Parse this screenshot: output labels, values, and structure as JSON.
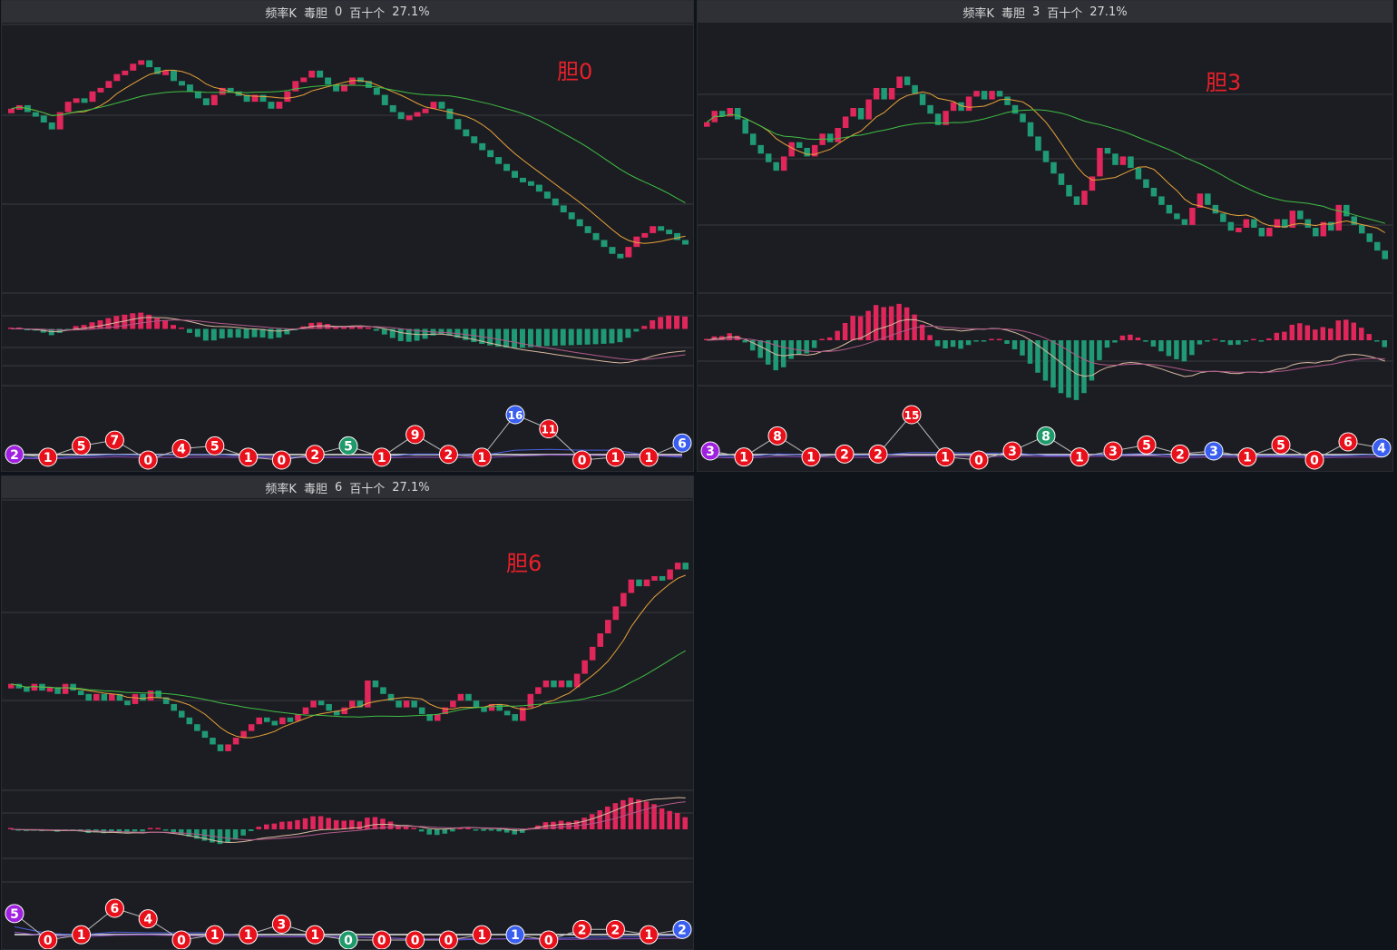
{
  "colors": {
    "panel_bg": "#1c1d22",
    "header_bg": "#2f3036",
    "grid": "#3a3b42",
    "up": "#e0265a",
    "down": "#1f9a74",
    "ma_short": "#e8a23a",
    "ma_long": "#3fbe44",
    "macd_fast": "#d9b8a0",
    "macd_slow": "#b05a8a",
    "ball_red": "#e8101a",
    "ball_blue": "#3a5ef0",
    "ball_green": "#1f9a6a",
    "ball_purple": "#a020e0",
    "annotation": "#e8202a"
  },
  "panels": [
    {
      "header": {
        "name": "频率K",
        "tag": "毒胆",
        "num": "0",
        "pos": "百十个",
        "pct": "27.1%"
      },
      "annotation": "胆0",
      "chart_data": {
        "type": "candlestick",
        "closes": [
          5.4,
          5.5,
          5.3,
          5.2,
          5.0,
          4.8,
          5.3,
          5.6,
          5.7,
          5.6,
          5.9,
          6.0,
          6.2,
          6.4,
          6.5,
          6.7,
          6.8,
          6.6,
          6.4,
          6.5,
          6.2,
          6.1,
          5.9,
          5.7,
          5.5,
          5.8,
          6.0,
          5.9,
          5.8,
          5.6,
          5.8,
          5.6,
          5.4,
          5.6,
          5.9,
          6.2,
          6.3,
          6.5,
          6.3,
          6.1,
          5.9,
          6.1,
          6.3,
          6.2,
          6.0,
          5.8,
          5.5,
          5.3,
          5.1,
          5.2,
          5.3,
          5.4,
          5.6,
          5.4,
          5.1,
          4.8,
          4.6,
          4.4,
          4.2,
          4.0,
          3.8,
          3.6,
          3.4,
          3.3,
          3.2,
          3.0,
          2.8,
          2.6,
          2.4,
          2.2,
          2.0,
          1.8,
          1.6,
          1.4,
          1.2,
          1.1,
          1.4,
          1.7,
          1.8,
          2.0,
          1.9,
          1.8,
          1.6,
          1.5
        ],
        "balls": [
          {
            "v": "2",
            "c": "purple"
          },
          {
            "v": "1",
            "c": "red"
          },
          {
            "v": "5",
            "c": "red"
          },
          {
            "v": "7",
            "c": "red"
          },
          {
            "v": "0",
            "c": "red"
          },
          {
            "v": "4",
            "c": "red"
          },
          {
            "v": "5",
            "c": "red"
          },
          {
            "v": "1",
            "c": "red"
          },
          {
            "v": "0",
            "c": "red"
          },
          {
            "v": "2",
            "c": "red"
          },
          {
            "v": "5",
            "c": "green"
          },
          {
            "v": "1",
            "c": "red"
          },
          {
            "v": "9",
            "c": "red"
          },
          {
            "v": "2",
            "c": "red"
          },
          {
            "v": "1",
            "c": "red"
          },
          {
            "v": "16",
            "c": "blue"
          },
          {
            "v": "11",
            "c": "red"
          },
          {
            "v": "0",
            "c": "red"
          },
          {
            "v": "1",
            "c": "red"
          },
          {
            "v": "1",
            "c": "red"
          },
          {
            "v": "6",
            "c": "blue"
          }
        ]
      }
    },
    {
      "header": {
        "name": "频率K",
        "tag": "毒胆",
        "num": "3",
        "pos": "百十个",
        "pct": "27.1%"
      },
      "annotation": "胆3",
      "chart_data": {
        "type": "candlestick",
        "closes": [
          6.2,
          6.6,
          6.4,
          6.7,
          6.3,
          5.8,
          5.4,
          5.1,
          4.8,
          4.5,
          5.0,
          5.5,
          5.3,
          5.0,
          5.4,
          5.8,
          5.5,
          6.0,
          6.4,
          6.7,
          6.3,
          7.0,
          7.4,
          7.0,
          7.4,
          7.8,
          7.5,
          7.2,
          6.8,
          6.5,
          6.1,
          6.6,
          6.9,
          6.6,
          7.1,
          7.3,
          7.0,
          7.3,
          7.1,
          6.8,
          6.5,
          6.2,
          5.7,
          5.2,
          4.8,
          4.4,
          4.0,
          3.6,
          3.3,
          3.8,
          4.3,
          5.3,
          5.1,
          4.7,
          5.0,
          4.6,
          4.2,
          3.9,
          3.6,
          3.3,
          3.0,
          2.8,
          2.6,
          3.2,
          3.7,
          3.3,
          3.0,
          2.7,
          2.4,
          2.5,
          2.8,
          2.5,
          2.2,
          2.5,
          2.8,
          2.5,
          3.1,
          2.8,
          2.5,
          2.2,
          2.7,
          2.4,
          3.3,
          2.9,
          2.6,
          2.3,
          2.0,
          1.7,
          1.4
        ],
        "balls": [
          {
            "v": "3",
            "c": "purple"
          },
          {
            "v": "1",
            "c": "red"
          },
          {
            "v": "8",
            "c": "red"
          },
          {
            "v": "1",
            "c": "red"
          },
          {
            "v": "2",
            "c": "red"
          },
          {
            "v": "2",
            "c": "red"
          },
          {
            "v": "15",
            "c": "red"
          },
          {
            "v": "1",
            "c": "red"
          },
          {
            "v": "0",
            "c": "red"
          },
          {
            "v": "3",
            "c": "red"
          },
          {
            "v": "8",
            "c": "green"
          },
          {
            "v": "1",
            "c": "red"
          },
          {
            "v": "3",
            "c": "red"
          },
          {
            "v": "5",
            "c": "red"
          },
          {
            "v": "2",
            "c": "red"
          },
          {
            "v": "3",
            "c": "blue"
          },
          {
            "v": "1",
            "c": "red"
          },
          {
            "v": "5",
            "c": "red"
          },
          {
            "v": "0",
            "c": "red"
          },
          {
            "v": "6",
            "c": "red"
          },
          {
            "v": "4",
            "c": "blue"
          }
        ]
      }
    },
    {
      "header": {
        "name": "频率K",
        "tag": "毒胆",
        "num": "6",
        "pos": "百十个",
        "pct": "27.1%"
      },
      "annotation": "胆6",
      "chart_data": {
        "type": "candlestick",
        "closes": [
          2.9,
          2.8,
          2.7,
          2.9,
          2.7,
          2.8,
          2.6,
          2.9,
          2.7,
          2.6,
          2.4,
          2.6,
          2.4,
          2.6,
          2.4,
          2.3,
          2.6,
          2.4,
          2.7,
          2.5,
          2.3,
          2.1,
          1.9,
          1.7,
          1.5,
          1.3,
          1.1,
          0.9,
          1.1,
          1.3,
          1.5,
          1.7,
          1.9,
          1.8,
          1.7,
          1.9,
          1.8,
          2.0,
          2.2,
          2.4,
          2.3,
          2.1,
          2.0,
          2.2,
          2.4,
          2.2,
          3.0,
          2.8,
          2.6,
          2.4,
          2.2,
          2.4,
          2.2,
          2.0,
          1.8,
          2.0,
          2.2,
          2.4,
          2.6,
          2.4,
          2.2,
          2.1,
          2.3,
          2.1,
          2.0,
          1.8,
          2.2,
          2.6,
          2.8,
          3.0,
          2.8,
          3.0,
          2.8,
          3.2,
          3.6,
          4.0,
          4.4,
          4.8,
          5.2,
          5.6,
          6.0,
          5.8,
          6.0,
          6.1,
          6.0,
          6.3,
          6.5,
          6.3
        ],
        "balls": [
          {
            "v": "5",
            "c": "purple"
          },
          {
            "v": "0",
            "c": "red"
          },
          {
            "v": "1",
            "c": "red"
          },
          {
            "v": "6",
            "c": "red"
          },
          {
            "v": "4",
            "c": "red"
          },
          {
            "v": "0",
            "c": "red"
          },
          {
            "v": "1",
            "c": "red"
          },
          {
            "v": "1",
            "c": "red"
          },
          {
            "v": "3",
            "c": "red"
          },
          {
            "v": "1",
            "c": "red"
          },
          {
            "v": "0",
            "c": "green"
          },
          {
            "v": "0",
            "c": "red"
          },
          {
            "v": "0",
            "c": "red"
          },
          {
            "v": "0",
            "c": "red"
          },
          {
            "v": "1",
            "c": "red"
          },
          {
            "v": "1",
            "c": "blue"
          },
          {
            "v": "0",
            "c": "red"
          },
          {
            "v": "2",
            "c": "red"
          },
          {
            "v": "2",
            "c": "red"
          },
          {
            "v": "1",
            "c": "red"
          },
          {
            "v": "2",
            "c": "blue"
          }
        ]
      }
    }
  ]
}
